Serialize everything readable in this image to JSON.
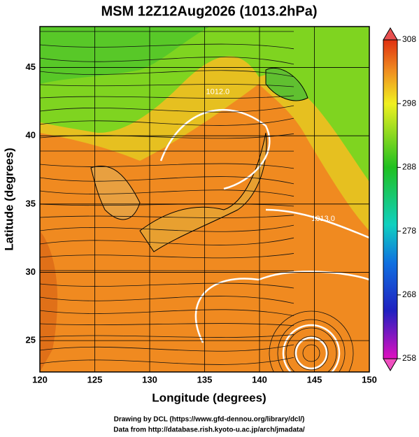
{
  "title": "MSM 12Z12Aug2026 (1013.2hPa)",
  "map": {
    "x_label": "Longitude (degrees)",
    "y_label": "Latitude  (degrees)",
    "xlim": [
      120,
      150
    ],
    "ylim": [
      22.7,
      48
    ],
    "xticks": [
      120,
      125,
      130,
      135,
      140,
      145,
      150
    ],
    "yticks": [
      25,
      30,
      35,
      40,
      45
    ],
    "contour_labels": [
      {
        "text": "1012.0",
        "lon": 136.2,
        "lat": 43.2
      },
      {
        "text": "1013.0",
        "lon": 145.8,
        "lat": 33.9
      }
    ]
  },
  "colorbar": {
    "lim": [
      258,
      308
    ],
    "ticks": [
      258,
      268,
      278,
      288,
      298,
      308
    ]
  },
  "credits": [
    "Drawing by DCL (https://www.gfd-dennou.org/library/dcl/)",
    "Data from http://database.rish.kyoto-u.ac.jp/arch/jmadata/"
  ]
}
